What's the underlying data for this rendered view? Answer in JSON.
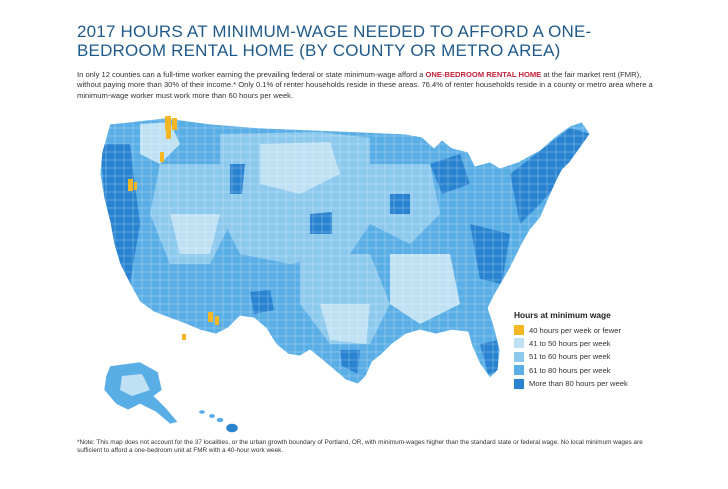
{
  "title": "2017 HOURS AT MINIMUM-WAGE NEEDED TO AFFORD A ONE-BEDROOM RENTAL HOME (BY COUNTY OR METRO AREA)",
  "intro": {
    "before": "In only 12 counties can a full-time worker earning the prevailing federal or state minimum-wage afford a ",
    "highlight": "ONE-BEDROOM RENTAL HOME",
    "after": " at the fair market rent (FMR), without paying more than 30% of their income.* Only 0.1% of renter households reside in these areas. 76.4% of renter households reside in a county or metro area where a minimum-wage worker must work more than 60 hours per week."
  },
  "legend": {
    "title": "Hours at minimum wage",
    "items": [
      {
        "label": "40 hours per week or fewer",
        "color": "#f4b623"
      },
      {
        "label": "41 to 50 hours per week",
        "color": "#bfe1f3"
      },
      {
        "label": "51 to 60 hours per week",
        "color": "#8dc9ed"
      },
      {
        "label": "61 to 80 hours per week",
        "color": "#5aaee6"
      },
      {
        "label": "More than 80 hours per week",
        "color": "#2a83d0"
      }
    ]
  },
  "note": "*Note: This map does not account for the 37 localities, or the urban growth boundary of Portland, OR, with minimum-wages higher than the standard state or federal wage. No local minimum wages are sufficient to afford a one-bedroom unit at FMR with a 40-hour work week."
}
